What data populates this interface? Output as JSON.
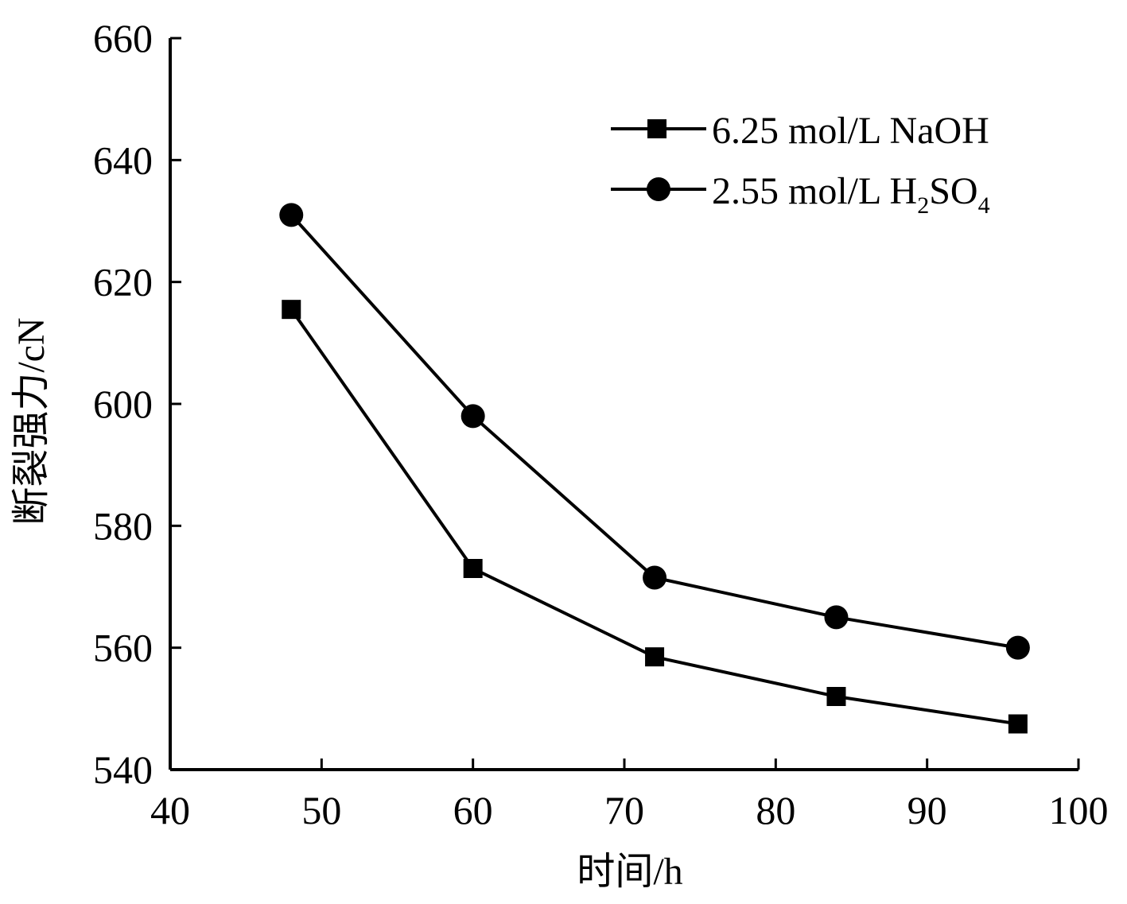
{
  "chart_data": {
    "type": "line",
    "title": "",
    "xlabel": "时间/h",
    "ylabel": "断裂强力/cN",
    "xlim": [
      40,
      100
    ],
    "ylim": [
      540,
      660
    ],
    "xticks": [
      40,
      50,
      60,
      70,
      80,
      90,
      100
    ],
    "yticks": [
      540,
      560,
      580,
      600,
      620,
      640,
      660
    ],
    "grid": false,
    "legend_position": "top-right",
    "series": [
      {
        "name": "6.25 mol/L NaOH",
        "marker": "square",
        "x": [
          48,
          60,
          72,
          84,
          96
        ],
        "y": [
          615.5,
          573,
          558.5,
          552,
          547.5
        ]
      },
      {
        "name": "2.55 mol/L H2SO4",
        "marker": "circle",
        "x": [
          48,
          60,
          72,
          84,
          96
        ],
        "y": [
          631,
          598,
          571.5,
          565,
          560
        ]
      }
    ]
  },
  "legend": {
    "naoh_label": "6.25 mol/L NaOH",
    "h2so4_prefix": "2.55 mol/L H",
    "h2so4_sub1": "2",
    "h2so4_mid": "SO",
    "h2so4_sub2": "4"
  },
  "colors": {
    "line": "#000000",
    "background": "#ffffff"
  }
}
